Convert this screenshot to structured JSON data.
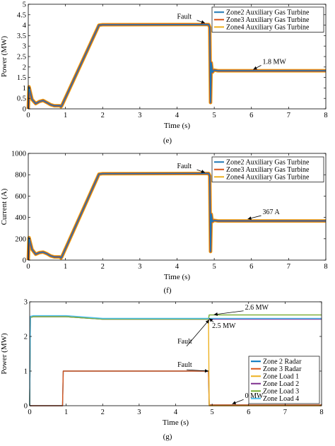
{
  "chart_data": [
    {
      "type": "line",
      "caption": "(e)",
      "xlabel": "Time (s)",
      "ylabel": "Power (MW)",
      "xlim": [
        0,
        8
      ],
      "ylim": [
        0,
        5
      ],
      "xticks": [
        0,
        1,
        2,
        3,
        4,
        5,
        6,
        7,
        8
      ],
      "yticks": [
        0,
        0.5,
        1,
        1.5,
        2,
        2.5,
        3,
        3.5,
        4,
        4.5,
        5
      ],
      "xtick_labels": [
        "0",
        "1",
        "2",
        "3",
        "4",
        "5",
        "6",
        "7",
        "8"
      ],
      "ytick_labels": [
        "0",
        "0.5",
        "1",
        "1.5",
        "2",
        "2.5",
        "3",
        "3.5",
        "4",
        "4.5",
        "5"
      ],
      "legend_position": "top-right",
      "series": [
        {
          "name": "Zone2 Auxiliary Gas Turbine",
          "color": "#1f77b4",
          "x": [
            0,
            0.02,
            0.1,
            0.2,
            0.3,
            0.4,
            0.5,
            0.6,
            0.7,
            0.85,
            0.88,
            0.9,
            1.9,
            2.0,
            4.85,
            4.88,
            4.9,
            4.92,
            4.95,
            5.0,
            5.1,
            8.0
          ],
          "y": [
            0,
            1.05,
            0.45,
            0.25,
            0.35,
            0.4,
            0.3,
            0.2,
            0.15,
            0.15,
            0.1,
            0.15,
            4.0,
            4.02,
            4.03,
            3.9,
            0.3,
            2.2,
            1.75,
            1.85,
            1.82,
            1.82
          ]
        },
        {
          "name": "Zone3 Auxiliary Gas Turbine",
          "color": "#d95319",
          "x": [
            0,
            0.02,
            0.1,
            0.2,
            0.3,
            0.4,
            0.5,
            0.6,
            0.7,
            0.85,
            0.88,
            0.9,
            1.9,
            2.0,
            4.85,
            4.88,
            4.9,
            4.92,
            4.95,
            5.0,
            5.1,
            8.0
          ],
          "y": [
            0,
            1.05,
            0.45,
            0.25,
            0.35,
            0.4,
            0.3,
            0.2,
            0.15,
            0.15,
            0.1,
            0.15,
            4.0,
            4.02,
            4.03,
            3.9,
            0.3,
            2.2,
            1.75,
            1.85,
            1.82,
            1.82
          ]
        },
        {
          "name": "Zone4 Auxiliary Gas Turbine",
          "color": "#edb120",
          "x": [
            0,
            0.02,
            0.1,
            0.2,
            0.3,
            0.4,
            0.5,
            0.6,
            0.7,
            0.85,
            0.88,
            0.9,
            1.9,
            2.0,
            4.85,
            4.88,
            4.9,
            4.92,
            4.95,
            5.0,
            5.1,
            8.0
          ],
          "y": [
            0,
            1.05,
            0.45,
            0.25,
            0.35,
            0.4,
            0.3,
            0.2,
            0.15,
            0.15,
            0.1,
            0.15,
            4.0,
            4.02,
            4.03,
            3.9,
            0.3,
            2.2,
            1.75,
            1.85,
            1.82,
            1.82
          ]
        }
      ],
      "annotations": [
        {
          "text": "Fault",
          "x": 4.0,
          "y": 4.3
        },
        {
          "text": "1.8 MW",
          "x": 6.3,
          "y": 2.15
        }
      ]
    },
    {
      "type": "line",
      "caption": "(f)",
      "xlabel": "Time (s)",
      "ylabel": "Current (A)",
      "xlim": [
        0,
        8
      ],
      "ylim": [
        0,
        1000
      ],
      "xticks": [
        0,
        1,
        2,
        3,
        4,
        5,
        6,
        7,
        8
      ],
      "yticks": [
        0,
        200,
        400,
        600,
        800,
        1000
      ],
      "xtick_labels": [
        "0",
        "1",
        "2",
        "3",
        "4",
        "5",
        "6",
        "7",
        "8"
      ],
      "ytick_labels": [
        "0",
        "200",
        "400",
        "600",
        "800",
        "1000"
      ],
      "legend_position": "top-right",
      "series": [
        {
          "name": "Zone2 Auxiliary Gas Turbine",
          "color": "#1f77b4",
          "x": [
            0,
            0.02,
            0.1,
            0.2,
            0.3,
            0.4,
            0.5,
            0.6,
            0.7,
            0.85,
            0.88,
            0.9,
            1.9,
            2.0,
            4.85,
            4.88,
            4.9,
            4.92,
            4.95,
            5.0,
            5.1,
            8.0
          ],
          "y": [
            0,
            210,
            100,
            55,
            70,
            75,
            60,
            40,
            30,
            30,
            20,
            30,
            805,
            810,
            812,
            790,
            80,
            430,
            360,
            372,
            367,
            367
          ]
        },
        {
          "name": "Zone3 Auxiliary Gas Turbine",
          "color": "#d95319",
          "x": [
            0,
            0.02,
            0.1,
            0.2,
            0.3,
            0.4,
            0.5,
            0.6,
            0.7,
            0.85,
            0.88,
            0.9,
            1.9,
            2.0,
            4.85,
            4.88,
            4.9,
            4.92,
            4.95,
            5.0,
            5.1,
            8.0
          ],
          "y": [
            0,
            210,
            100,
            55,
            70,
            75,
            60,
            40,
            30,
            30,
            20,
            30,
            805,
            810,
            812,
            790,
            80,
            430,
            360,
            372,
            367,
            367
          ]
        },
        {
          "name": "Zone4 Auxiliary Gas Turbine",
          "color": "#edb120",
          "x": [
            0,
            0.02,
            0.1,
            0.2,
            0.3,
            0.4,
            0.5,
            0.6,
            0.7,
            0.85,
            0.88,
            0.9,
            1.9,
            2.0,
            4.85,
            4.88,
            4.9,
            4.92,
            4.95,
            5.0,
            5.1,
            8.0
          ],
          "y": [
            0,
            210,
            100,
            55,
            70,
            75,
            60,
            40,
            30,
            30,
            20,
            30,
            805,
            810,
            812,
            790,
            80,
            430,
            360,
            372,
            367,
            367
          ]
        }
      ],
      "annotations": [
        {
          "text": "Fault",
          "x": 4.0,
          "y": 860
        },
        {
          "text": "367 A",
          "x": 6.3,
          "y": 430
        }
      ]
    },
    {
      "type": "line",
      "caption": "(g)",
      "xlabel": "Time (s)",
      "ylabel": "Power (MW)",
      "xlim": [
        0,
        8
      ],
      "ylim": [
        0,
        3
      ],
      "xticks": [
        0,
        1,
        2,
        3,
        4,
        5,
        6,
        7,
        8
      ],
      "yticks": [
        0,
        1,
        2,
        3
      ],
      "xtick_labels": [
        "0",
        "1",
        "2",
        "3",
        "4",
        "5",
        "6",
        "7",
        "8"
      ],
      "ytick_labels": [
        "0",
        "1",
        "2",
        "3"
      ],
      "legend_position": "right",
      "series": [
        {
          "name": "Zone 2 Radar",
          "color": "#0072bd",
          "x": [
            0,
            0.9,
            0.92,
            4.9,
            4.92,
            8.0
          ],
          "y": [
            0,
            0,
            1.0,
            1.0,
            0.02,
            0.02
          ]
        },
        {
          "name": "Zone 3 Radar",
          "color": "#d95319",
          "x": [
            0,
            0.9,
            0.92,
            4.9,
            4.92,
            8.0
          ],
          "y": [
            0,
            0,
            1.0,
            1.0,
            0.02,
            0.02
          ]
        },
        {
          "name": "Zone Load 1",
          "color": "#edb120",
          "x": [
            0,
            0.02,
            0.1,
            1.0,
            2.0,
            4.9,
            4.92,
            8.0
          ],
          "y": [
            0,
            2.55,
            2.57,
            2.57,
            2.5,
            2.5,
            0.0,
            0.0
          ]
        },
        {
          "name": "Zone Load 2",
          "color": "#7e2f8e",
          "x": [
            0,
            0.02,
            0.1,
            1.0,
            2.0,
            8.0
          ],
          "y": [
            0,
            2.55,
            2.57,
            2.57,
            2.5,
            2.5
          ]
        },
        {
          "name": "Zone Load 3",
          "color": "#77ac30",
          "x": [
            0,
            0.02,
            0.1,
            1.0,
            2.0,
            4.9,
            4.92,
            8.0
          ],
          "y": [
            0,
            2.55,
            2.57,
            2.57,
            2.5,
            2.5,
            2.62,
            2.62
          ]
        },
        {
          "name": "Zone Load 4",
          "color": "#4dbeee",
          "x": [
            0,
            0.02,
            0.1,
            1.0,
            2.0,
            8.0
          ],
          "y": [
            0,
            2.58,
            2.6,
            2.6,
            2.52,
            2.52
          ]
        }
      ],
      "annotations": [
        {
          "text": "2.6 MW",
          "x": 5.9,
          "y": 2.78
        },
        {
          "text": "2.5 MW",
          "x": 5.0,
          "y": 2.25
        },
        {
          "text": "Fault",
          "x": 4.05,
          "y": 1.8
        },
        {
          "text": "Fault",
          "x": 4.05,
          "y": 1.12
        },
        {
          "text": "0 MW",
          "x": 5.9,
          "y": 0.22
        }
      ]
    }
  ]
}
